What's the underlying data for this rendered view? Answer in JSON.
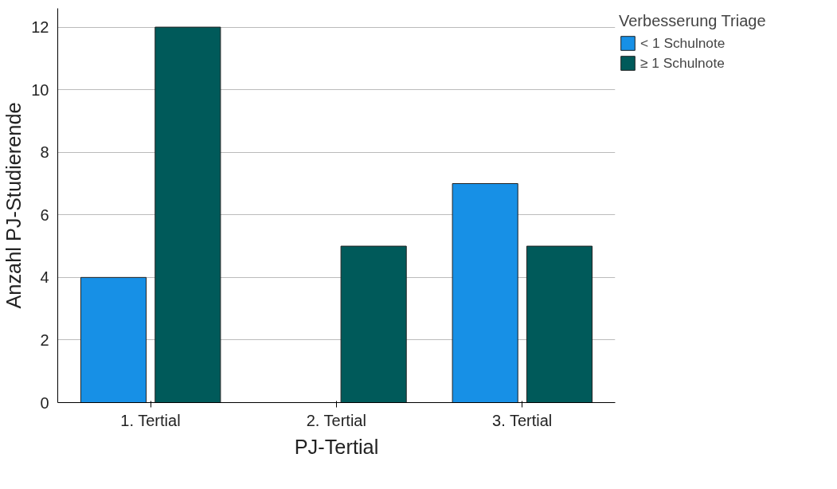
{
  "chart_data": {
    "type": "bar",
    "xlabel": "PJ-Tertial",
    "ylabel": "Anzahl PJ-Studierende",
    "legend_title": "Verbesserung Triage",
    "categories": [
      "1. Tertial",
      "2. Tertial",
      "3. Tertial"
    ],
    "series": [
      {
        "name": "< 1 Schulnote",
        "color": "#1790e6",
        "values": [
          4,
          0,
          7
        ]
      },
      {
        "name": "≥ 1 Schulnote",
        "color": "#005a5a",
        "values": [
          12,
          5,
          5
        ]
      }
    ],
    "ylim": [
      0,
      12.6
    ],
    "yticks": [
      0,
      2,
      4,
      6,
      8,
      10,
      12
    ],
    "grid": "y",
    "legend": "top right"
  }
}
